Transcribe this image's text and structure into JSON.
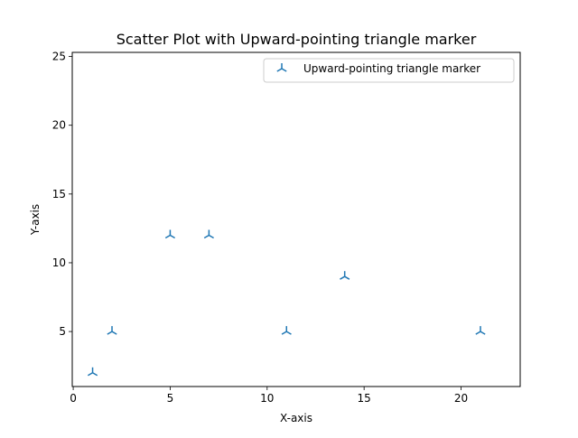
{
  "chart_data": {
    "type": "scatter",
    "title": "Scatter Plot with Upward-pointing triangle marker",
    "xlabel": "X-axis",
    "ylabel": "Y-axis",
    "xlim": [
      -0.05,
      23.05
    ],
    "ylim": [
      1.0,
      25.3
    ],
    "xticks": [
      0,
      5,
      10,
      15,
      20
    ],
    "yticks": [
      5,
      10,
      15,
      20,
      25
    ],
    "grid": false,
    "legend": {
      "position": "upper right",
      "entries": [
        "Upward-pointing triangle marker"
      ]
    },
    "series": [
      {
        "name": "Upward-pointing triangle marker",
        "marker": "tri_up",
        "color": "#1f77b4",
        "x": [
          1,
          2,
          5,
          7,
          11,
          14,
          21
        ],
        "y": [
          2,
          5,
          12,
          12,
          5,
          9,
          5
        ]
      }
    ]
  }
}
